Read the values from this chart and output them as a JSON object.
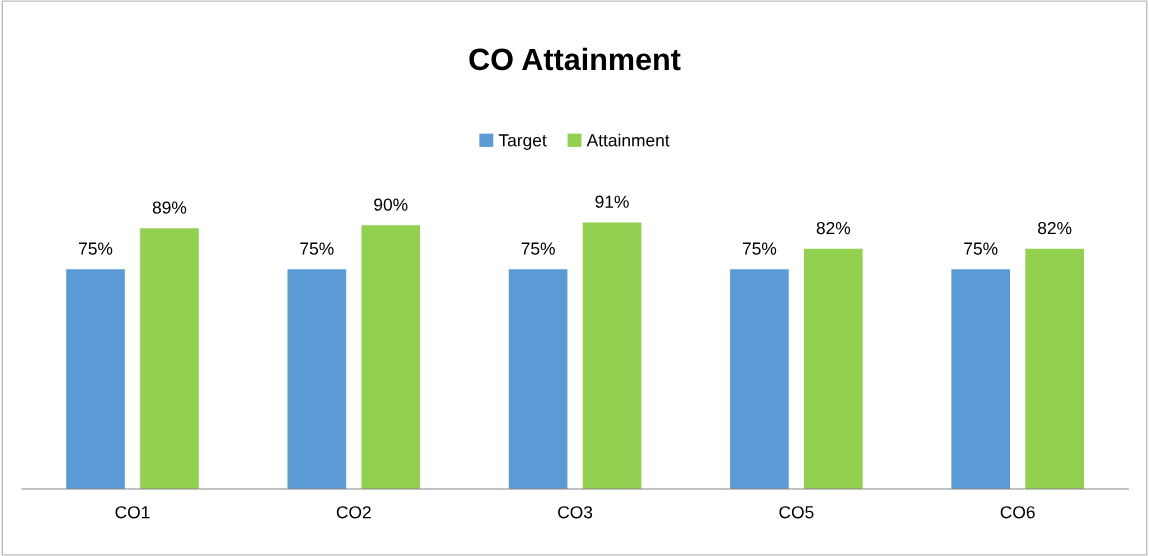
{
  "chart_data": {
    "type": "bar",
    "title": "CO Attainment",
    "categories": [
      "CO1",
      "CO2",
      "CO3",
      "CO5",
      "CO6"
    ],
    "series": [
      {
        "name": "Target",
        "color": "#5b9bd5",
        "values": [
          75,
          75,
          75,
          75,
          75
        ],
        "value_labels": [
          "75%",
          "75%",
          "75%",
          "75%",
          "75%"
        ]
      },
      {
        "name": "Attainment",
        "color": "#92d050",
        "values": [
          89,
          90,
          91,
          82,
          82
        ],
        "value_labels": [
          "89%",
          "90%",
          "91%",
          "82%",
          "82%"
        ]
      }
    ],
    "tick_labels": "x",
    "grid": false,
    "legend": "top"
  }
}
